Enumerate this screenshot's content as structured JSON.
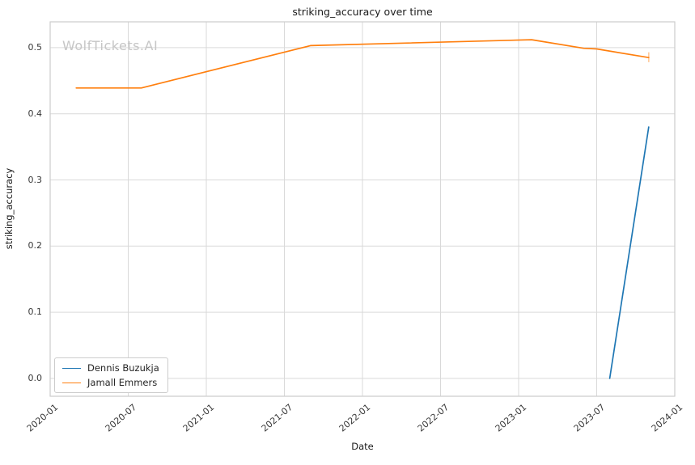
{
  "title": "striking_accuracy over time",
  "watermark": "WolfTickets.AI",
  "colors": {
    "blue": "#1f77b4",
    "orange": "#ff7f0e",
    "orange_faint": "rgba(255,127,14,0.42)",
    "grid": "#d9d9d9",
    "spine": "#cccccc"
  },
  "chart_data": {
    "type": "line",
    "title": "striking_accuracy over time",
    "xlabel": "Date",
    "ylabel": "striking_accuracy",
    "grid": true,
    "legend_position": "lower left",
    "x_range_months": [
      "2020-01",
      "2024-01"
    ],
    "x_tick_labels": [
      "2020-01",
      "2020-07",
      "2021-01",
      "2021-07",
      "2022-01",
      "2022-07",
      "2023-01",
      "2023-07",
      "2024-01"
    ],
    "y_ticks": [
      0.0,
      0.1,
      0.2,
      0.3,
      0.4,
      0.5
    ],
    "ylim": [
      -0.027,
      0.539
    ],
    "series": [
      {
        "name": "Dennis Buzukja",
        "color_key": "blue",
        "points": [
          [
            "2023-08",
            0.0
          ],
          [
            "2023-11",
            0.38
          ]
        ]
      },
      {
        "name": "Jamall Emmers",
        "color_key": "orange",
        "points": [
          [
            "2020-03",
            0.439
          ],
          [
            "2020-08",
            0.439
          ],
          [
            "2021-09",
            0.503
          ],
          [
            "2023-02",
            0.512
          ],
          [
            "2023-06",
            0.499
          ],
          [
            "2023-07",
            0.498
          ],
          [
            "2023-11",
            0.485
          ]
        ],
        "end_whisker": {
          "x": "2023-11",
          "y_low": 0.478,
          "y_high": 0.493
        }
      }
    ]
  }
}
